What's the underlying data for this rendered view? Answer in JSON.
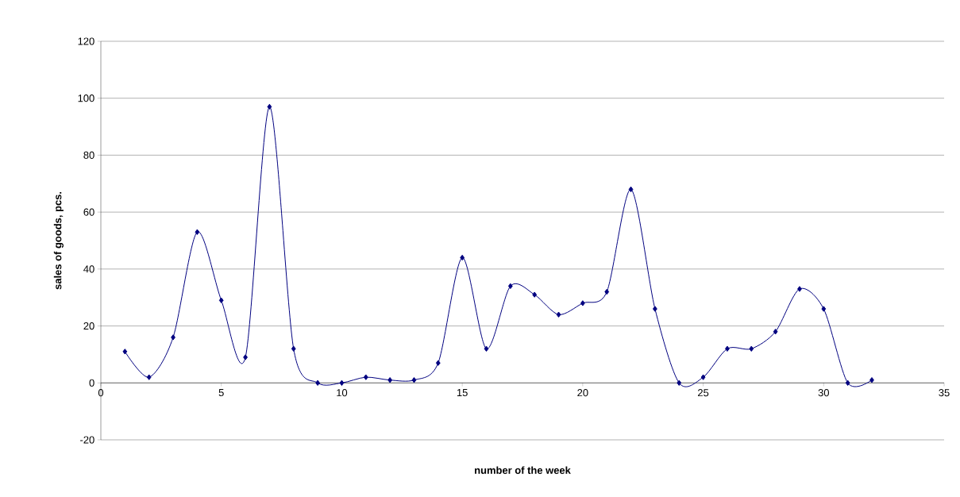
{
  "chart_data": {
    "type": "line",
    "xlabel": "number of the week",
    "ylabel": "sales of goods, pcs.",
    "x": [
      1,
      2,
      3,
      4,
      5,
      6,
      7,
      8,
      9,
      10,
      11,
      12,
      13,
      14,
      15,
      16,
      17,
      18,
      19,
      20,
      21,
      22,
      23,
      24,
      25,
      26,
      27,
      28,
      29,
      30,
      31,
      32
    ],
    "values": [
      11,
      2,
      16,
      53,
      29,
      9,
      97,
      12,
      0,
      0,
      2,
      1,
      1,
      7,
      44,
      12,
      34,
      31,
      24,
      28,
      32,
      68,
      26,
      0,
      2,
      12,
      12,
      18,
      33,
      26,
      0,
      1
    ],
    "color": "#000080",
    "marker": "diamond",
    "line_style": "solid",
    "xlim": [
      0,
      35
    ],
    "xticks": [
      0,
      5,
      10,
      15,
      20,
      25,
      30,
      35
    ],
    "ylim": [
      -20,
      120
    ],
    "yticks": [
      -20,
      0,
      20,
      40,
      60,
      80,
      100,
      120
    ],
    "grid": "y"
  }
}
